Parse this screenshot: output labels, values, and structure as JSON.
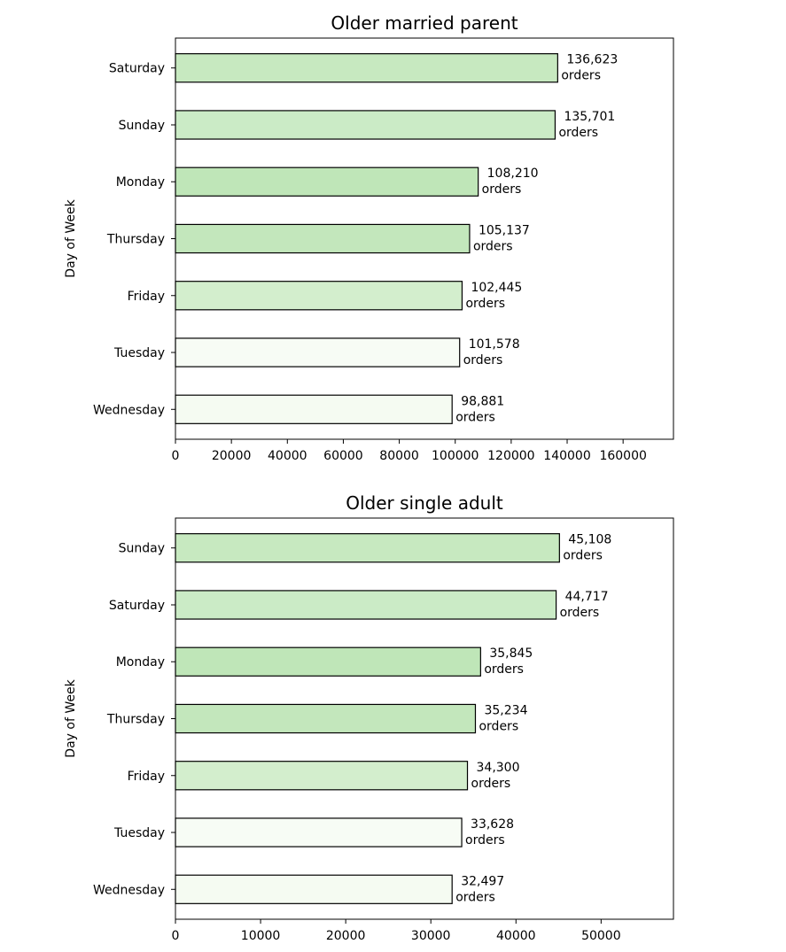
{
  "chart_data": [
    {
      "type": "bar",
      "orientation": "horizontal",
      "title": "Older married parent",
      "ylabel": "Day of Week",
      "xlabel": "",
      "categories": [
        "Saturday",
        "Sunday",
        "Monday",
        "Thursday",
        "Friday",
        "Tuesday",
        "Wednesday"
      ],
      "values": [
        136623,
        135701,
        108210,
        105137,
        102445,
        101578,
        98881
      ],
      "data_labels": [
        "136,623",
        "135,701",
        "108,210",
        "105,137",
        "102,445",
        "101,578",
        "98,881"
      ],
      "data_label_suffix": "orders",
      "xticks": [
        0,
        20000,
        40000,
        60000,
        80000,
        100000,
        120000,
        140000,
        160000
      ],
      "xlim": [
        0,
        178000
      ],
      "bar_colors": [
        "#c7e9c0",
        "#cbebc6",
        "#bfe6b8",
        "#c3e7bc",
        "#d3eecd",
        "#f7fcf5",
        "#f5fbf2"
      ],
      "grid": false
    },
    {
      "type": "bar",
      "orientation": "horizontal",
      "title": "Older single adult",
      "ylabel": "Day of Week",
      "xlabel": "",
      "categories": [
        "Sunday",
        "Saturday",
        "Monday",
        "Thursday",
        "Friday",
        "Tuesday",
        "Wednesday"
      ],
      "values": [
        45108,
        44717,
        35845,
        35234,
        34300,
        33628,
        32497
      ],
      "data_labels": [
        "45,108",
        "44,717",
        "35,845",
        "35,234",
        "34,300",
        "33,628",
        "32,497"
      ],
      "data_label_suffix": "orders",
      "xticks": [
        0,
        10000,
        20000,
        30000,
        40000,
        50000
      ],
      "xlim": [
        0,
        58500
      ],
      "bar_colors": [
        "#c7e9c0",
        "#cbebc6",
        "#bfe6b8",
        "#c3e7bc",
        "#d3eecd",
        "#f7fcf5",
        "#f5fbf2"
      ],
      "grid": false
    }
  ]
}
